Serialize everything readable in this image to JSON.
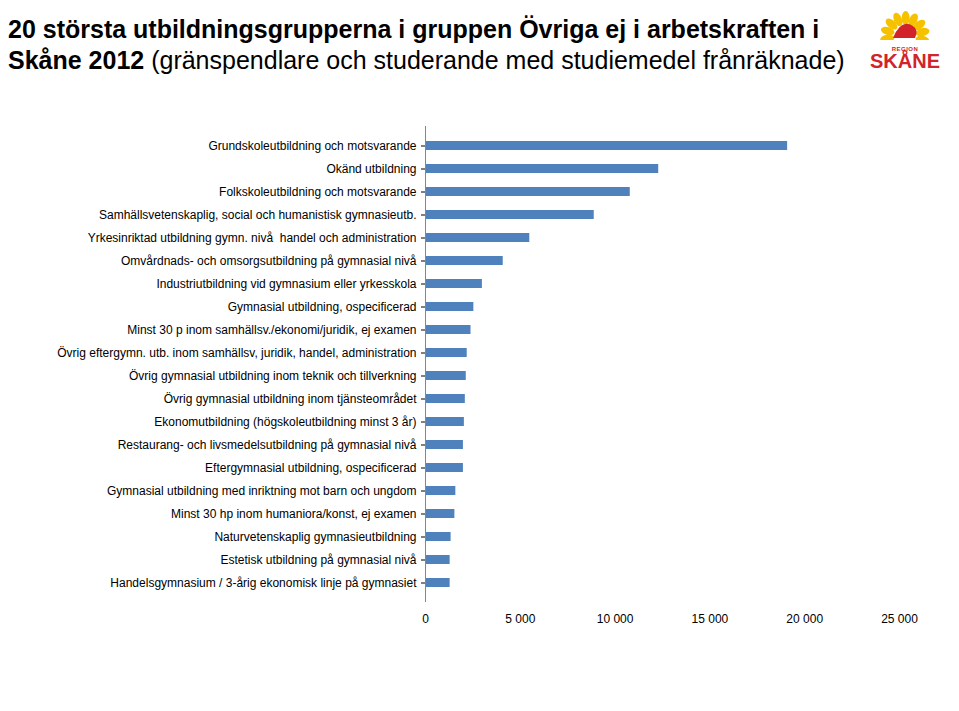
{
  "chart_data": {
    "type": "bar",
    "orientation": "horizontal",
    "title": "20 största utbildningsgrupperna i gruppen Övriga ej i arbetskraften i Skåne 2012",
    "subtitle": "(gränspendlare och studerande med studiemedel frånräknade)",
    "logo_small": "REGION",
    "logo_text": "SKÅNE",
    "categories": [
      "Grundskoleutbildning och motsvarande",
      "Okänd utbildning",
      "Folkskoleutbildning och motsvarande",
      "Samhällsvetenskaplig, social och humanistisk gymnasieutb.",
      "Yrkesinriktad utbildning gymn. nivå  handel och administration",
      "Omvårdnads- och omsorgsutbildning på gymnasial nivå",
      "Industriutbildning vid gymnasium eller yrkesskola",
      "Gymnasial utbildning, ospecificerad",
      "Minst 30 p inom samhällsv./ekonomi/juridik, ej examen",
      "Övrig eftergymn. utb. inom samhällsv, juridik, handel, administration",
      "Övrig gymnasial utbildning inom teknik och tillverkning",
      "Övrig gymnasial utbildning inom tjänsteområdet",
      "Ekonomutbildning (högskoleutbildning minst 3 år)",
      "Restaurang- och livsmedelsutbildning på gymnasial nivå",
      "Eftergymnasial utbildning, ospecificerad",
      "Gymnasial utbildning med inriktning mot barn och ungdom",
      "Minst 30 hp inom humaniora/konst, ej examen",
      "Naturvetenskaplig gymnasieutbildning",
      "Estetisk utbildning på gymnasial nivå",
      "Handelsgymnasium / 3-årig ekonomisk linje på gymnasiet"
    ],
    "values": [
      19100,
      12300,
      10800,
      8900,
      5500,
      4100,
      3000,
      2550,
      2400,
      2200,
      2150,
      2100,
      2050,
      2000,
      2000,
      1600,
      1550,
      1350,
      1300,
      1300
    ],
    "color": "#4f81bd",
    "xlim": [
      0,
      25000
    ],
    "xticks": [
      0,
      {
        "value": 5000,
        "label": "5 000"
      },
      {
        "value": 10000,
        "label": "10 000"
      },
      {
        "value": 15000,
        "label": "15 000"
      },
      {
        "value": 20000,
        "label": "20 000"
      },
      {
        "value": 25000,
        "label": "25 000"
      }
    ],
    "grid": false
  }
}
